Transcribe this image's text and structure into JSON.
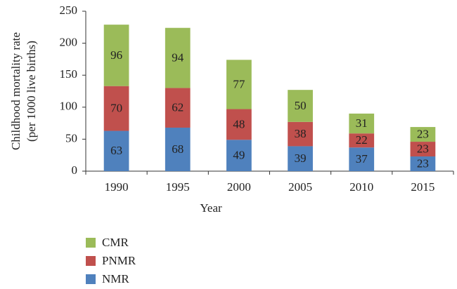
{
  "chart_data": {
    "type": "stacked_bar",
    "categories": [
      "1990",
      "1995",
      "2000",
      "2005",
      "2010",
      "2015"
    ],
    "series": [
      {
        "name": "NMR",
        "color": "#4f81bd",
        "values": [
          63,
          68,
          49,
          39,
          37,
          23
        ]
      },
      {
        "name": "PNMR",
        "color": "#c0504d",
        "values": [
          70,
          62,
          48,
          38,
          22,
          23
        ]
      },
      {
        "name": "CMR",
        "color": "#9bbb59",
        "values": [
          96,
          94,
          77,
          50,
          31,
          23
        ]
      }
    ],
    "x_label": "Year",
    "y_label": [
      "Childhood mortality rate",
      "(per 1000 live births)"
    ],
    "ylim": [
      0,
      250
    ],
    "yticks": [
      0,
      50,
      100,
      150,
      200,
      250
    ],
    "grid": false,
    "legend": "bottom-left"
  }
}
